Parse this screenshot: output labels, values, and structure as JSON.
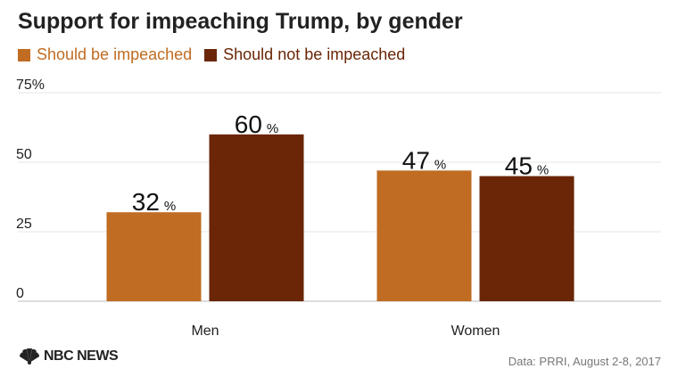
{
  "chart_data": {
    "type": "bar",
    "title": "Support for impeaching Trump, by gender",
    "categories": [
      "Men",
      "Women"
    ],
    "series": [
      {
        "name": "Should be impeached",
        "values": [
          32,
          47
        ],
        "color": "#c06c22"
      },
      {
        "name": "Should not be impeached",
        "values": [
          60,
          45
        ],
        "color": "#6a2607"
      }
    ],
    "value_suffix": "%",
    "yticks": [
      {
        "value": 0,
        "label": "0"
      },
      {
        "value": 25,
        "label": "25"
      },
      {
        "value": 50,
        "label": "50"
      },
      {
        "value": 75,
        "label": "75%"
      }
    ],
    "ylim": [
      0,
      75
    ],
    "xlabel": "",
    "ylabel": "",
    "grid": true,
    "legend_position": "top-left"
  },
  "footer": {
    "logo_text": "NBC NEWS",
    "source": "Data: PRRI, August 2-8, 2017"
  }
}
